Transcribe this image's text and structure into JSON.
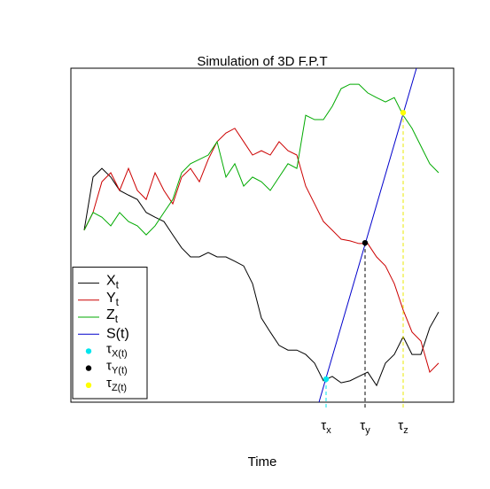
{
  "chart_data": {
    "type": "line",
    "title": "Simulation of 3D F.P.T",
    "x_label": "Time",
    "x": [
      0,
      1,
      2,
      3,
      4,
      5,
      6,
      7,
      8,
      9,
      10,
      11,
      12,
      13,
      14,
      15,
      16,
      17,
      18,
      19,
      20,
      21,
      22,
      23,
      24,
      25,
      26,
      27,
      28,
      29,
      30,
      31,
      32,
      33,
      34,
      35,
      36,
      37,
      38,
      39,
      40
    ],
    "xlim": [
      -1.5,
      41.7
    ],
    "ylim": [
      0,
      100
    ],
    "series": [
      {
        "name": "X",
        "name_sub": "t",
        "color": "#000000",
        "values": [
          51.5,
          67.4,
          70,
          67.4,
          63.4,
          62,
          60.7,
          56.8,
          55.4,
          54.1,
          50.1,
          46.2,
          43.5,
          43.5,
          44.8,
          43.5,
          43.5,
          42.2,
          40.8,
          35.5,
          25.2,
          21,
          17,
          15.6,
          15.6,
          14.3,
          11.7,
          6.4,
          7.7,
          5.8,
          6.4,
          7.7,
          9,
          5,
          11.7,
          14.3,
          19.6,
          14.3,
          14.3,
          22.3,
          27
        ]
      },
      {
        "name": "Y",
        "name_sub": "t",
        "color": "#cc0000",
        "values": [
          51.5,
          56.8,
          66,
          68.7,
          63.4,
          70,
          63.4,
          60.7,
          68.7,
          63.4,
          59.4,
          67.4,
          70,
          66,
          72.7,
          78,
          80.6,
          82,
          78,
          74,
          75.3,
          74,
          78,
          75.3,
          74,
          64.7,
          59.4,
          54.1,
          51.5,
          48.8,
          48.3,
          47.5,
          47.5,
          43.5,
          40.8,
          35.5,
          27.6,
          21,
          18.3,
          9,
          11.7
        ]
      },
      {
        "name": "Z",
        "name_sub": "t",
        "color": "#00aa00",
        "values": [
          51.5,
          56.8,
          55.4,
          52.8,
          56.8,
          54.1,
          52.8,
          50.1,
          52.8,
          56.8,
          60.7,
          68.7,
          71.4,
          72.7,
          74,
          78,
          67.4,
          71.4,
          64.7,
          67.4,
          66,
          63.4,
          67.4,
          71.4,
          70,
          85.9,
          84.6,
          84.6,
          88.6,
          93.9,
          95.2,
          95.2,
          92.6,
          91.2,
          89.9,
          91.2,
          85.9,
          82,
          76.7,
          71.4,
          68.7
        ]
      },
      {
        "name": "S(t)",
        "color": "#0000cc",
        "x": [
          26.5,
          37.5
        ],
        "values": [
          0,
          100
        ]
      }
    ],
    "markers": [
      {
        "name": "τ",
        "name_sub": "X(t)",
        "color": "#00e5ee",
        "x": 27.3,
        "y": 6.9,
        "label": "τ",
        "label_sub": "x"
      },
      {
        "name": "τ",
        "name_sub": "Y(t)",
        "color": "#000000",
        "x": 31.7,
        "y": 47.7,
        "label": "τ",
        "label_sub": "y"
      },
      {
        "name": "τ",
        "name_sub": "Z(t)",
        "color": "#ffff00",
        "x": 36,
        "y": 86.7,
        "label": "τ",
        "label_sub": "z"
      }
    ],
    "legend": "bottomleft"
  }
}
